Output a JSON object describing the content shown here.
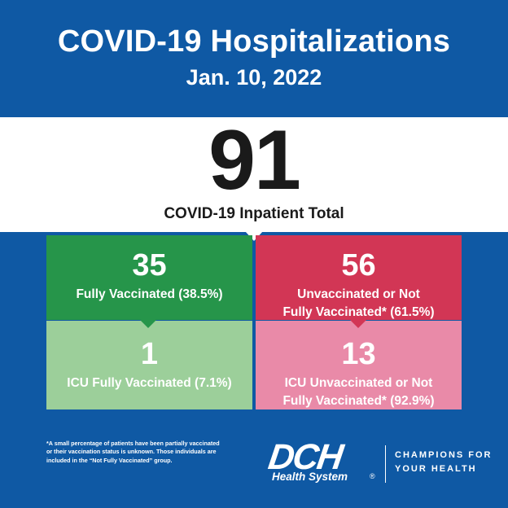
{
  "header": {
    "title": "COVID-19 Hospitalizations",
    "date": "Jan. 10, 2022"
  },
  "total": {
    "value": "91",
    "label": "COVID-19 Inpatient Total"
  },
  "boxes": [
    {
      "value": "35",
      "label_line1": "Fully Vaccinated (38.5%)",
      "label_line2": "",
      "color": "#26954a"
    },
    {
      "value": "56",
      "label_line1": "Unvaccinated or Not",
      "label_line2": "Fully Vaccinated* (61.5%)",
      "color": "#d23655"
    },
    {
      "value": "1",
      "label_line1": "ICU Fully Vaccinated (7.1%)",
      "label_line2": "",
      "color": "#9ccf9a"
    },
    {
      "value": "13",
      "label_line1": "ICU Unvaccinated or Not",
      "label_line2": "Fully Vaccinated* (92.9%)",
      "color": "#e98aa8"
    }
  ],
  "footnote": {
    "line1": "*A small percentage of patients have been partially vaccinated",
    "line2": "or their vaccination status is unknown. Those individuals are",
    "line3": "included in the “Not Fully Vaccinated” group."
  },
  "logo": {
    "name": "DCH",
    "subtitle": "Health System",
    "reg": "®",
    "tagline_line1": "CHAMPIONS FOR",
    "tagline_line2": "YOUR HEALTH"
  },
  "colors": {
    "background": "#0f59a4",
    "band": "#ffffff"
  }
}
